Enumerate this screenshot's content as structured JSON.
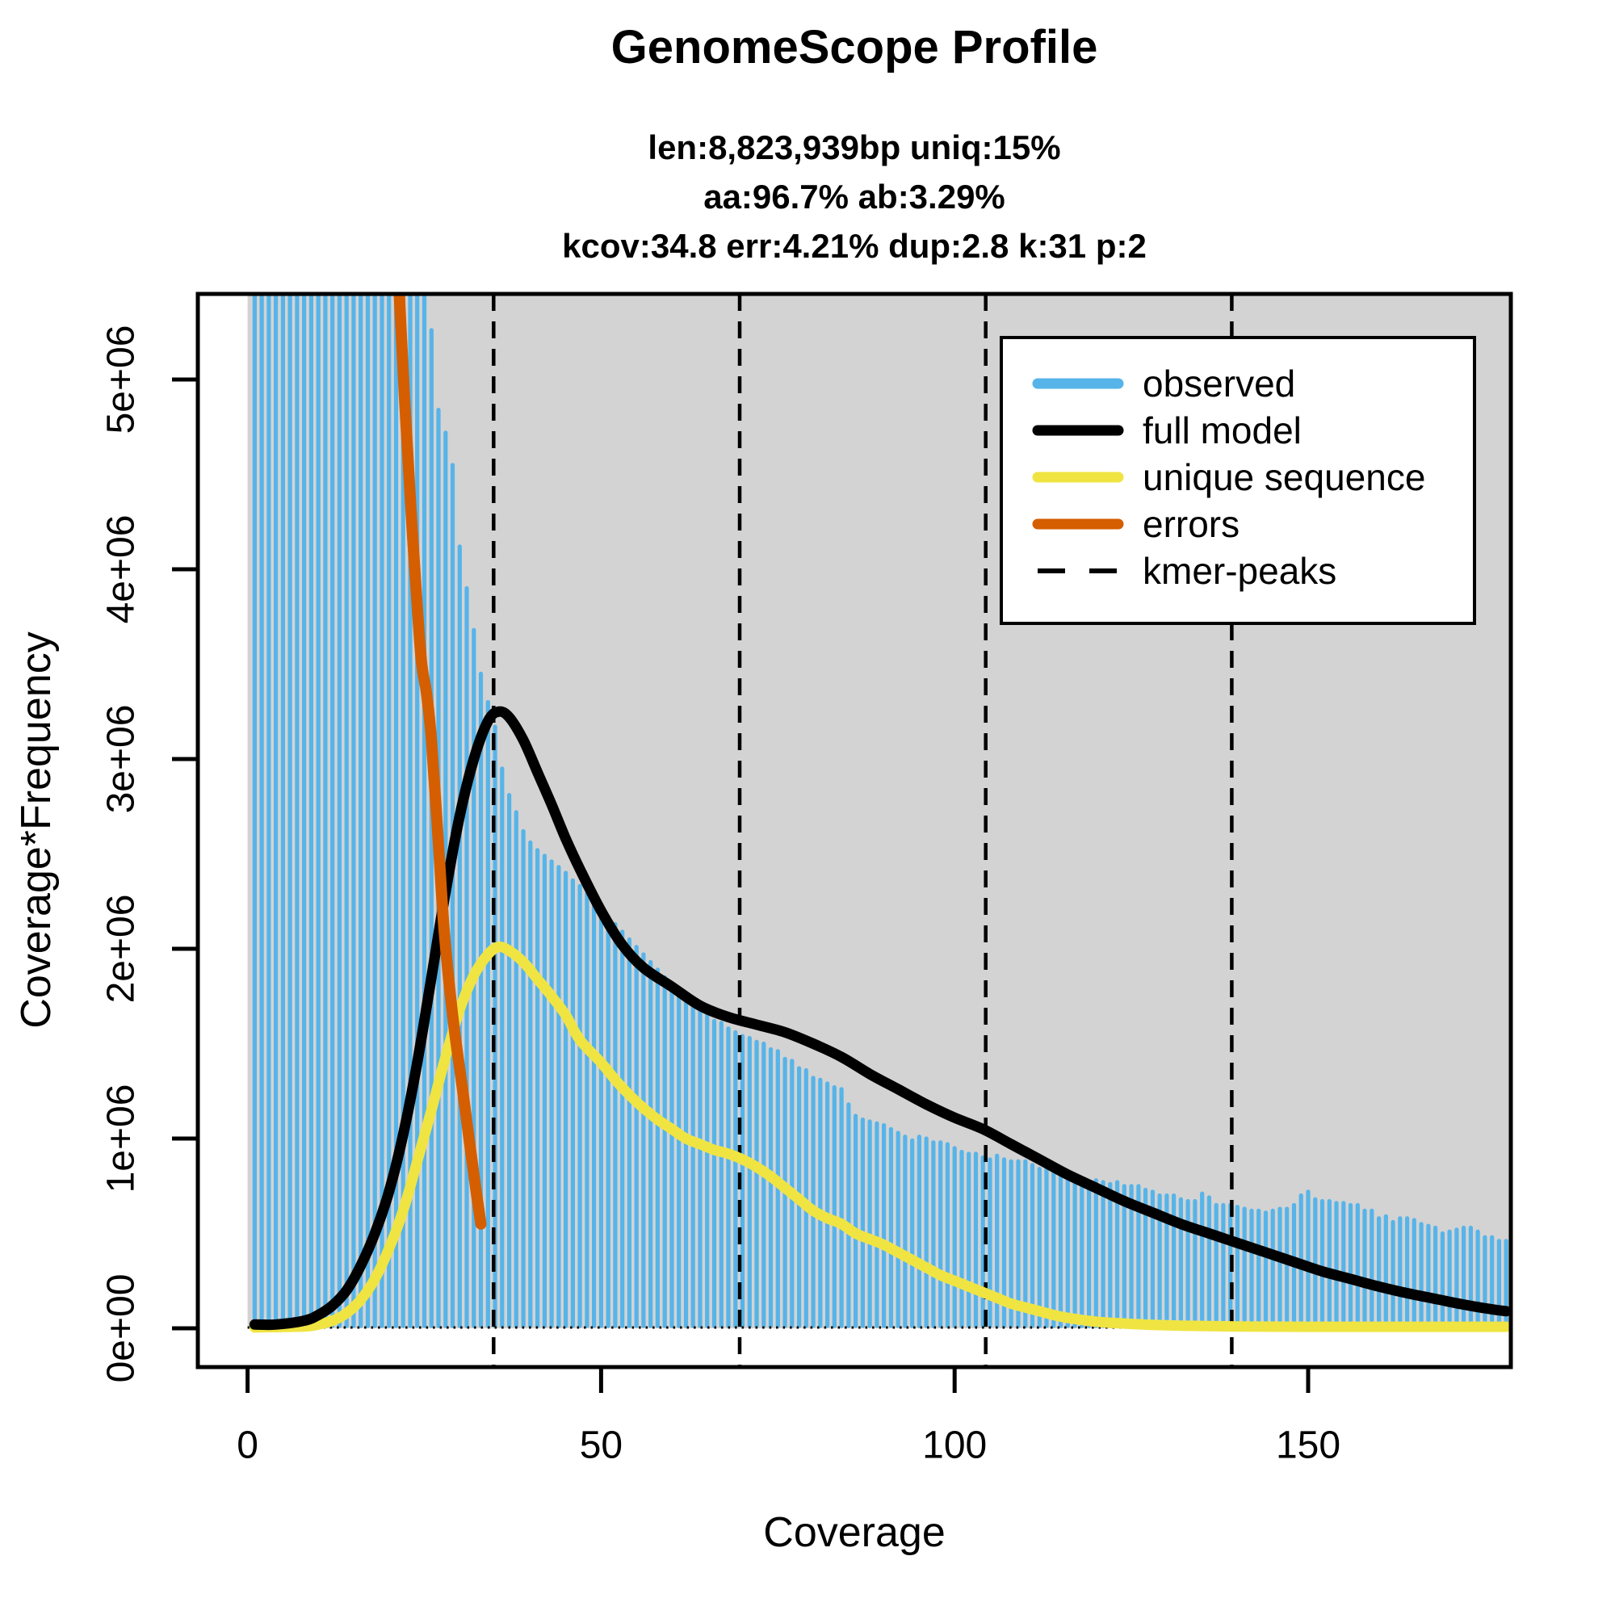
{
  "title": "GenomeScope Profile",
  "subtitle": [
    "len:8,823,939bp uniq:15%",
    "aa:96.7% ab:3.29%",
    "kcov:34.8 err:4.21%  dup:2.8  k:31 p:2"
  ],
  "axes": {
    "x_label": "Coverage",
    "y_label": "Coverage*Frequency",
    "x_tick_labels": [
      "0",
      "50",
      "100",
      "150"
    ],
    "y_tick_labels": [
      "0e+00",
      "1e+06",
      "2e+06",
      "3e+06",
      "4e+06",
      "5e+06"
    ]
  },
  "legend": {
    "items": [
      {
        "label": "observed",
        "color": "#56B4E9",
        "style": "solid"
      },
      {
        "label": "full model",
        "color": "#000000",
        "style": "solid"
      },
      {
        "label": "unique sequence",
        "color": "#F0E442",
        "style": "solid"
      },
      {
        "label": "errors",
        "color": "#D55E00",
        "style": "solid"
      },
      {
        "label": "kmer-peaks",
        "color": "#000000",
        "style": "dashed"
      }
    ]
  },
  "colors": {
    "observed": "#56B4E9",
    "full_model": "#000000",
    "unique_sequence": "#F0E442",
    "errors": "#D55E00",
    "panel_background": "#D3D3D3",
    "frame": "#000000",
    "page_background": "#FFFFFF"
  },
  "chart_data": {
    "type": "bar",
    "title": "GenomeScope Profile",
    "xlabel": "Coverage",
    "ylabel": "Coverage*Frequency",
    "xlim": [
      -7,
      179
    ],
    "ylim": [
      -200000,
      5450000
    ],
    "x_ticks": [
      0,
      50,
      100,
      150
    ],
    "y_ticks": [
      0,
      1000000,
      2000000,
      3000000,
      4000000,
      5000000
    ],
    "values_unit": "millions_of_coverage_times_frequency",
    "kmer_peaks": [
      34.8,
      69.6,
      104.4,
      139.2
    ],
    "observed_start_coverage": 1,
    "observed": [
      45,
      38,
      32,
      27,
      23,
      20,
      17.5,
      15.5,
      14,
      12.8,
      11.8,
      11,
      10.3,
      9.7,
      9.1,
      8.6,
      8.1,
      7.7,
      7.3,
      6.9,
      6.6,
      6.3,
      6.0,
      5.75,
      5.5,
      5.26,
      4.84,
      4.72,
      4.55,
      4.12,
      3.9,
      3.68,
      3.45,
      3.3,
      3.17,
      2.95,
      2.81,
      2.72,
      2.62,
      2.56,
      2.52,
      2.49,
      2.46,
      2.43,
      2.4,
      2.36,
      2.33,
      2.29,
      2.25,
      2.22,
      2.17,
      2.13,
      2.09,
      2.05,
      2.01,
      1.97,
      1.93,
      1.89,
      1.85,
      1.81,
      1.78,
      1.74,
      1.7,
      1.68,
      1.65,
      1.62,
      1.61,
      1.58,
      1.56,
      1.54,
      1.53,
      1.51,
      1.5,
      1.47,
      1.46,
      1.42,
      1.41,
      1.37,
      1.36,
      1.32,
      1.31,
      1.29,
      1.27,
      1.26,
      1.18,
      1.12,
      1.1,
      1.09,
      1.08,
      1.07,
      1.05,
      1.03,
      1.01,
      0.99,
      1.01,
      1.0,
      0.98,
      0.98,
      0.97,
      0.95,
      0.93,
      0.92,
      0.92,
      0.9,
      0.89,
      0.91,
      0.89,
      0.88,
      0.88,
      0.88,
      0.86,
      0.84,
      0.84,
      0.82,
      0.83,
      0.81,
      0.81,
      0.79,
      0.77,
      0.78,
      0.77,
      0.76,
      0.77,
      0.75,
      0.75,
      0.75,
      0.73,
      0.72,
      0.7,
      0.7,
      0.7,
      0.68,
      0.67,
      0.67,
      0.71,
      0.69,
      0.65,
      0.65,
      0.65,
      0.64,
      0.63,
      0.62,
      0.62,
      0.61,
      0.62,
      0.63,
      0.63,
      0.65,
      0.7,
      0.72,
      0.68,
      0.67,
      0.67,
      0.66,
      0.66,
      0.65,
      0.65,
      0.62,
      0.62,
      0.58,
      0.59,
      0.56,
      0.58,
      0.58,
      0.57,
      0.55,
      0.54,
      0.53,
      0.5,
      0.51,
      0.52,
      0.53,
      0.53,
      0.51,
      0.48,
      0.48,
      0.46,
      0.46
    ],
    "series": [
      {
        "name": "full model",
        "color": "#000000",
        "points": [
          [
            1,
            0.02
          ],
          [
            4,
            0.02
          ],
          [
            8,
            0.04
          ],
          [
            10,
            0.07
          ],
          [
            12,
            0.12
          ],
          [
            14,
            0.2
          ],
          [
            16,
            0.33
          ],
          [
            18,
            0.5
          ],
          [
            20,
            0.72
          ],
          [
            22,
            1.02
          ],
          [
            24,
            1.4
          ],
          [
            26,
            1.85
          ],
          [
            28,
            2.3
          ],
          [
            30,
            2.7
          ],
          [
            32,
            3.0
          ],
          [
            34,
            3.2
          ],
          [
            35.5,
            3.25
          ],
          [
            37,
            3.22
          ],
          [
            39,
            3.1
          ],
          [
            41,
            2.93
          ],
          [
            43,
            2.76
          ],
          [
            45,
            2.58
          ],
          [
            47,
            2.42
          ],
          [
            50,
            2.2
          ],
          [
            53,
            2.02
          ],
          [
            56,
            1.9
          ],
          [
            60,
            1.8
          ],
          [
            64,
            1.7
          ],
          [
            68,
            1.64
          ],
          [
            72,
            1.6
          ],
          [
            76,
            1.56
          ],
          [
            80,
            1.5
          ],
          [
            84,
            1.43
          ],
          [
            88,
            1.34
          ],
          [
            92,
            1.26
          ],
          [
            96,
            1.18
          ],
          [
            100,
            1.11
          ],
          [
            104,
            1.05
          ],
          [
            108,
            0.97
          ],
          [
            112,
            0.89
          ],
          [
            116,
            0.81
          ],
          [
            120,
            0.74
          ],
          [
            124,
            0.67
          ],
          [
            128,
            0.61
          ],
          [
            132,
            0.55
          ],
          [
            136,
            0.5
          ],
          [
            140,
            0.45
          ],
          [
            144,
            0.4
          ],
          [
            148,
            0.35
          ],
          [
            152,
            0.3
          ],
          [
            156,
            0.26
          ],
          [
            160,
            0.22
          ],
          [
            164,
            0.185
          ],
          [
            168,
            0.155
          ],
          [
            172,
            0.125
          ],
          [
            176,
            0.1
          ],
          [
            178,
            0.09
          ]
        ]
      },
      {
        "name": "unique sequence",
        "color": "#F0E442",
        "points": [
          [
            1,
            0.005
          ],
          [
            8,
            0.01
          ],
          [
            10,
            0.02
          ],
          [
            12,
            0.04
          ],
          [
            14,
            0.08
          ],
          [
            16,
            0.15
          ],
          [
            18,
            0.26
          ],
          [
            20,
            0.42
          ],
          [
            22,
            0.62
          ],
          [
            24,
            0.88
          ],
          [
            26,
            1.15
          ],
          [
            28,
            1.43
          ],
          [
            30,
            1.68
          ],
          [
            32,
            1.86
          ],
          [
            34,
            1.97
          ],
          [
            35.5,
            2.01
          ],
          [
            37,
            1.99
          ],
          [
            39,
            1.93
          ],
          [
            41,
            1.84
          ],
          [
            43,
            1.75
          ],
          [
            45,
            1.65
          ],
          [
            47,
            1.52
          ],
          [
            50,
            1.4
          ],
          [
            52,
            1.31
          ],
          [
            54,
            1.23
          ],
          [
            56,
            1.16
          ],
          [
            58,
            1.1
          ],
          [
            60,
            1.05
          ],
          [
            62,
            1.0
          ],
          [
            64,
            0.97
          ],
          [
            66,
            0.94
          ],
          [
            68,
            0.92
          ],
          [
            70,
            0.89
          ],
          [
            72,
            0.85
          ],
          [
            74,
            0.8
          ],
          [
            76,
            0.74
          ],
          [
            78,
            0.68
          ],
          [
            80,
            0.62
          ],
          [
            82,
            0.58
          ],
          [
            84,
            0.55
          ],
          [
            86,
            0.5
          ],
          [
            88,
            0.47
          ],
          [
            90,
            0.44
          ],
          [
            92,
            0.4
          ],
          [
            94,
            0.36
          ],
          [
            96,
            0.32
          ],
          [
            98,
            0.28
          ],
          [
            100,
            0.25
          ],
          [
            102,
            0.22
          ],
          [
            104,
            0.19
          ],
          [
            106,
            0.16
          ],
          [
            108,
            0.13
          ],
          [
            110,
            0.11
          ],
          [
            112,
            0.09
          ],
          [
            114,
            0.07
          ],
          [
            116,
            0.055
          ],
          [
            120,
            0.035
          ],
          [
            124,
            0.025
          ],
          [
            128,
            0.018
          ],
          [
            132,
            0.014
          ],
          [
            136,
            0.012
          ],
          [
            140,
            0.01
          ],
          [
            150,
            0.008
          ],
          [
            160,
            0.008
          ],
          [
            170,
            0.008
          ],
          [
            178,
            0.008
          ]
        ]
      },
      {
        "name": "errors",
        "color": "#D55E00",
        "points": [
          [
            21,
            5.8
          ],
          [
            22.2,
            4.9
          ],
          [
            23.3,
            4.2
          ],
          [
            24.5,
            3.55
          ],
          [
            25.3,
            3.35
          ],
          [
            26,
            3.1
          ],
          [
            27,
            2.55
          ],
          [
            27.8,
            2.1
          ],
          [
            29,
            1.65
          ],
          [
            30.4,
            1.26
          ],
          [
            31.5,
            0.95
          ],
          [
            32.3,
            0.73
          ],
          [
            33,
            0.55
          ]
        ]
      }
    ]
  }
}
